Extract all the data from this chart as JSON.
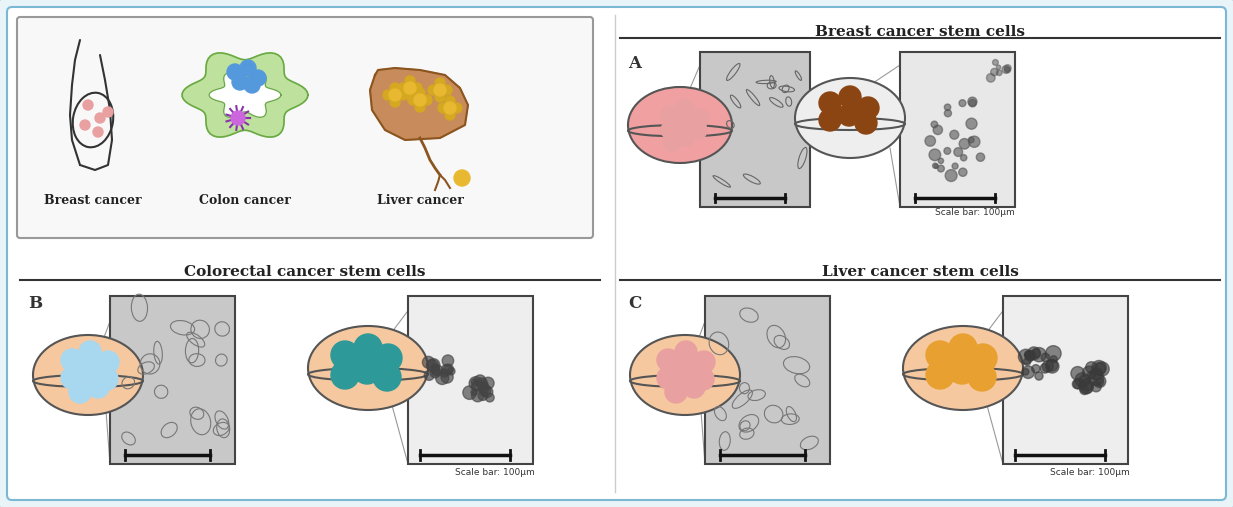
{
  "title": "",
  "outer_bg": "#e8f4f8",
  "inner_bg": "#ffffff",
  "border_color": "#7ab8d4",
  "left_panel_title": "",
  "section_A_title": "Breast cancer stem cells",
  "section_B_title": "Colorectal cancer stem cells",
  "section_C_title": "Liver cancer stem cells",
  "label_A": "A",
  "label_B": "B",
  "label_C": "C",
  "breast_cancer_label": "Breast cancer",
  "colon_cancer_label": "Colon cancer",
  "liver_cancer_label": "Liver cancer",
  "scalebar_text": "Scale bar: 100μm",
  "pink_cell_color": "#e8a0a0",
  "brown_cell_color": "#8B4513",
  "teal_cell_color": "#2e9999",
  "orange_cell_color": "#e8a030",
  "light_blue_cell_color": "#a8d8f0",
  "peach_dish_color": "#f5c8a0",
  "pink_dish_color": "#f0a0a0",
  "separator_line_color": "#555555",
  "line_color_dark": "#333333",
  "microscopy_bg1": "#c8c8c8",
  "microscopy_bg2": "#d8d8d8",
  "left_box_bg": "#f8f8f8"
}
